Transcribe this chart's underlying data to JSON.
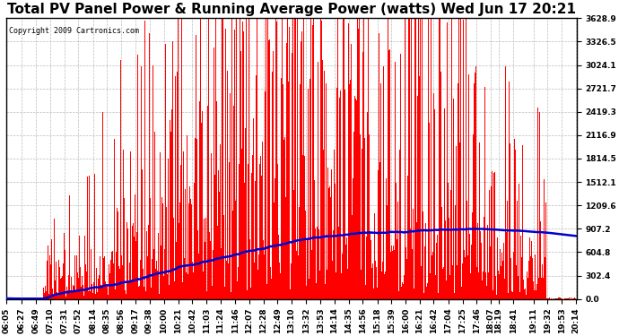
{
  "title": "Total PV Panel Power & Running Average Power (watts) Wed Jun 17 20:21",
  "copyright": "Copyright 2009 Cartronics.com",
  "yticks": [
    0.0,
    302.4,
    604.8,
    907.2,
    1209.6,
    1512.1,
    1814.5,
    2116.9,
    2419.3,
    2721.7,
    3024.1,
    3326.5,
    3628.9
  ],
  "ymax": 3628.9,
  "ymin": 0.0,
  "bar_color": "#ff0000",
  "line_color": "#0000cc",
  "background_color": "#ffffff",
  "plot_bg_color": "#ffffff",
  "grid_color": "#bbbbbb",
  "title_fontsize": 11,
  "tick_fontsize": 6.5,
  "copyright_fontsize": 6
}
